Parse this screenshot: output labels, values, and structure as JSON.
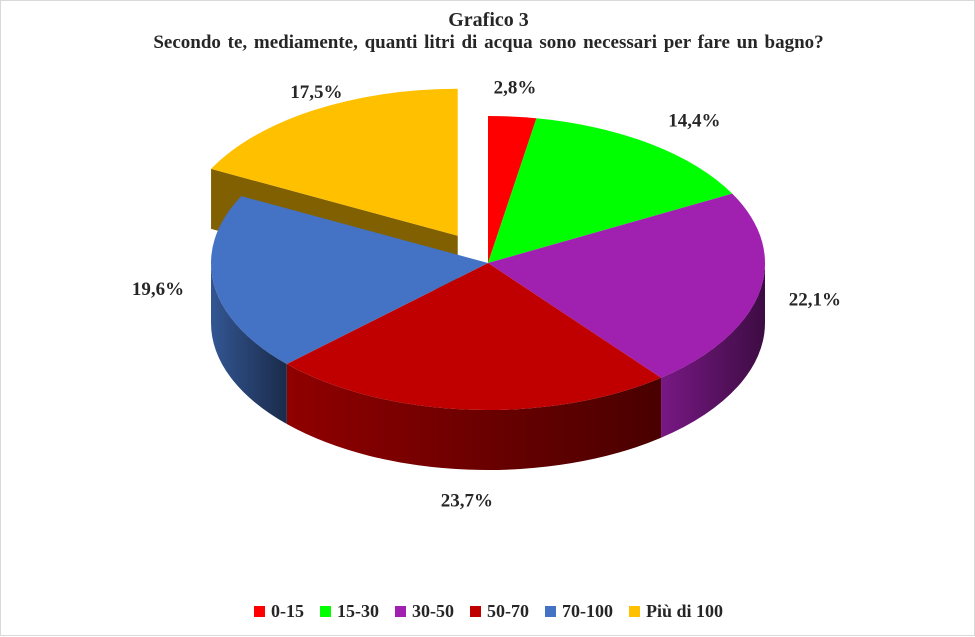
{
  "chart_data": {
    "type": "pie",
    "title": "Grafico 3",
    "subtitle": "Secondo te, mediamente, quanti litri  di acqua sono necessari per fare un bagno?",
    "categories": [
      "0-15",
      "15-30",
      "30-50",
      "50-70",
      "70-100",
      "Più di 100"
    ],
    "values": [
      2.8,
      14.4,
      22.1,
      23.7,
      19.6,
      17.5
    ],
    "value_labels": [
      "2,8%",
      "14,4%",
      "22,1%",
      "23,7%",
      "19,6%",
      "17,5%"
    ],
    "colors": [
      "#ff0000",
      "#00ff00",
      "#a020b0",
      "#c00000",
      "#4472c4",
      "#ffc000"
    ],
    "exploded": [
      "Più di 100"
    ],
    "style": "3d",
    "legend_position": "bottom"
  }
}
